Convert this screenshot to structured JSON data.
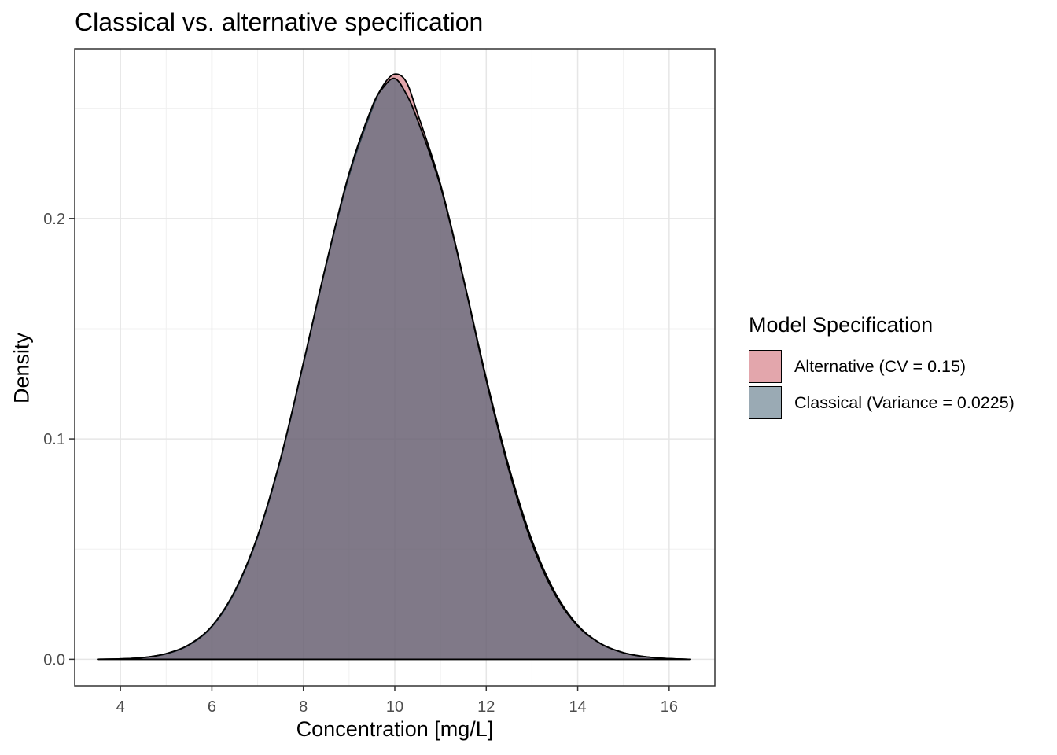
{
  "chart_data": {
    "type": "area",
    "title": "Classical vs. alternative specification",
    "xlabel": "Concentration [mg/L]",
    "ylabel": "Density",
    "xlim": [
      3.0,
      17.0
    ],
    "ylim": [
      -0.012,
      0.277
    ],
    "xticks": [
      4,
      6,
      8,
      10,
      12,
      14,
      16
    ],
    "yticks": [
      0.0,
      0.1,
      0.2
    ],
    "ytick_labels": [
      "0.0",
      "0.1",
      "0.2"
    ],
    "grid": true,
    "legend": {
      "title": "Model Specification",
      "position": "right"
    },
    "series": [
      {
        "name": "Alternative (CV = 0.15)",
        "color": "#d06a74",
        "x": [
          3.5,
          4.0,
          4.5,
          5.0,
          5.5,
          6.0,
          6.5,
          7.0,
          7.5,
          8.0,
          8.5,
          9.0,
          9.5,
          9.75,
          10.0,
          10.25,
          10.5,
          11.0,
          11.5,
          12.0,
          12.5,
          13.0,
          13.5,
          14.0,
          14.5,
          15.0,
          15.5,
          16.0,
          16.45
        ],
        "y": [
          0.0,
          0.0002,
          0.0008,
          0.0025,
          0.0065,
          0.0148,
          0.0305,
          0.0555,
          0.0905,
          0.134,
          0.179,
          0.2195,
          0.2495,
          0.2605,
          0.2655,
          0.262,
          0.2475,
          0.2155,
          0.173,
          0.1275,
          0.087,
          0.054,
          0.0305,
          0.0155,
          0.0072,
          0.003,
          0.0011,
          0.0003,
          0.0
        ]
      },
      {
        "name": "Classical (Variance = 0.0225)",
        "color": "#3e5c70",
        "x": [
          3.5,
          4.0,
          4.5,
          5.0,
          5.5,
          6.0,
          6.5,
          7.0,
          7.5,
          8.0,
          8.5,
          9.0,
          9.5,
          9.75,
          10.0,
          10.25,
          10.5,
          11.0,
          11.5,
          12.0,
          12.5,
          13.0,
          13.5,
          14.0,
          14.5,
          15.0,
          15.5,
          16.0,
          16.45
        ],
        "y": [
          0.0,
          0.0002,
          0.0008,
          0.0026,
          0.0067,
          0.0151,
          0.031,
          0.056,
          0.091,
          0.1345,
          0.1795,
          0.2205,
          0.2505,
          0.2595,
          0.2635,
          0.2565,
          0.2445,
          0.2145,
          0.1725,
          0.1265,
          0.0855,
          0.0525,
          0.0295,
          0.0151,
          0.0071,
          0.003,
          0.0011,
          0.0003,
          0.0
        ]
      }
    ]
  }
}
